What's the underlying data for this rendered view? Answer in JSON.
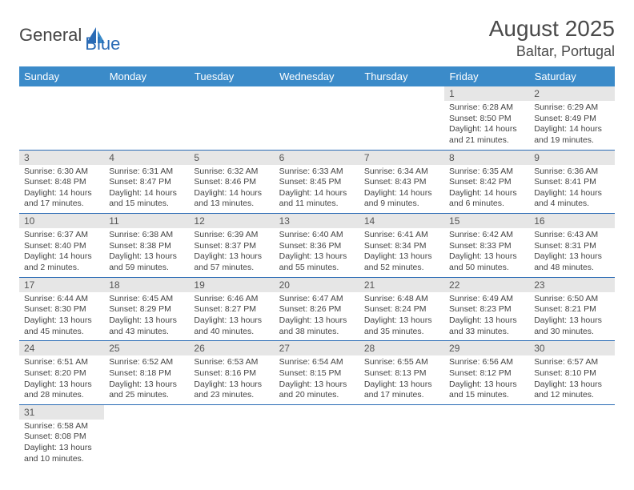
{
  "colors": {
    "header_bg": "#3b8bc9",
    "border": "#2a6bb5",
    "daynum_bg": "#e6e6e6",
    "text": "#444444",
    "title": "#4a4a4a",
    "logo_accent": "#2a6bb5"
  },
  "logo": {
    "part1": "General",
    "part2": "Blue"
  },
  "title": "August 2025",
  "location": "Baltar, Portugal",
  "day_headers": [
    "Sunday",
    "Monday",
    "Tuesday",
    "Wednesday",
    "Thursday",
    "Friday",
    "Saturday"
  ],
  "weeks": [
    [
      null,
      null,
      null,
      null,
      null,
      {
        "n": "1",
        "sr": "Sunrise: 6:28 AM",
        "ss": "Sunset: 8:50 PM",
        "d1": "Daylight: 14 hours",
        "d2": "and 21 minutes."
      },
      {
        "n": "2",
        "sr": "Sunrise: 6:29 AM",
        "ss": "Sunset: 8:49 PM",
        "d1": "Daylight: 14 hours",
        "d2": "and 19 minutes."
      }
    ],
    [
      {
        "n": "3",
        "sr": "Sunrise: 6:30 AM",
        "ss": "Sunset: 8:48 PM",
        "d1": "Daylight: 14 hours",
        "d2": "and 17 minutes."
      },
      {
        "n": "4",
        "sr": "Sunrise: 6:31 AM",
        "ss": "Sunset: 8:47 PM",
        "d1": "Daylight: 14 hours",
        "d2": "and 15 minutes."
      },
      {
        "n": "5",
        "sr": "Sunrise: 6:32 AM",
        "ss": "Sunset: 8:46 PM",
        "d1": "Daylight: 14 hours",
        "d2": "and 13 minutes."
      },
      {
        "n": "6",
        "sr": "Sunrise: 6:33 AM",
        "ss": "Sunset: 8:45 PM",
        "d1": "Daylight: 14 hours",
        "d2": "and 11 minutes."
      },
      {
        "n": "7",
        "sr": "Sunrise: 6:34 AM",
        "ss": "Sunset: 8:43 PM",
        "d1": "Daylight: 14 hours",
        "d2": "and 9 minutes."
      },
      {
        "n": "8",
        "sr": "Sunrise: 6:35 AM",
        "ss": "Sunset: 8:42 PM",
        "d1": "Daylight: 14 hours",
        "d2": "and 6 minutes."
      },
      {
        "n": "9",
        "sr": "Sunrise: 6:36 AM",
        "ss": "Sunset: 8:41 PM",
        "d1": "Daylight: 14 hours",
        "d2": "and 4 minutes."
      }
    ],
    [
      {
        "n": "10",
        "sr": "Sunrise: 6:37 AM",
        "ss": "Sunset: 8:40 PM",
        "d1": "Daylight: 14 hours",
        "d2": "and 2 minutes."
      },
      {
        "n": "11",
        "sr": "Sunrise: 6:38 AM",
        "ss": "Sunset: 8:38 PM",
        "d1": "Daylight: 13 hours",
        "d2": "and 59 minutes."
      },
      {
        "n": "12",
        "sr": "Sunrise: 6:39 AM",
        "ss": "Sunset: 8:37 PM",
        "d1": "Daylight: 13 hours",
        "d2": "and 57 minutes."
      },
      {
        "n": "13",
        "sr": "Sunrise: 6:40 AM",
        "ss": "Sunset: 8:36 PM",
        "d1": "Daylight: 13 hours",
        "d2": "and 55 minutes."
      },
      {
        "n": "14",
        "sr": "Sunrise: 6:41 AM",
        "ss": "Sunset: 8:34 PM",
        "d1": "Daylight: 13 hours",
        "d2": "and 52 minutes."
      },
      {
        "n": "15",
        "sr": "Sunrise: 6:42 AM",
        "ss": "Sunset: 8:33 PM",
        "d1": "Daylight: 13 hours",
        "d2": "and 50 minutes."
      },
      {
        "n": "16",
        "sr": "Sunrise: 6:43 AM",
        "ss": "Sunset: 8:31 PM",
        "d1": "Daylight: 13 hours",
        "d2": "and 48 minutes."
      }
    ],
    [
      {
        "n": "17",
        "sr": "Sunrise: 6:44 AM",
        "ss": "Sunset: 8:30 PM",
        "d1": "Daylight: 13 hours",
        "d2": "and 45 minutes."
      },
      {
        "n": "18",
        "sr": "Sunrise: 6:45 AM",
        "ss": "Sunset: 8:29 PM",
        "d1": "Daylight: 13 hours",
        "d2": "and 43 minutes."
      },
      {
        "n": "19",
        "sr": "Sunrise: 6:46 AM",
        "ss": "Sunset: 8:27 PM",
        "d1": "Daylight: 13 hours",
        "d2": "and 40 minutes."
      },
      {
        "n": "20",
        "sr": "Sunrise: 6:47 AM",
        "ss": "Sunset: 8:26 PM",
        "d1": "Daylight: 13 hours",
        "d2": "and 38 minutes."
      },
      {
        "n": "21",
        "sr": "Sunrise: 6:48 AM",
        "ss": "Sunset: 8:24 PM",
        "d1": "Daylight: 13 hours",
        "d2": "and 35 minutes."
      },
      {
        "n": "22",
        "sr": "Sunrise: 6:49 AM",
        "ss": "Sunset: 8:23 PM",
        "d1": "Daylight: 13 hours",
        "d2": "and 33 minutes."
      },
      {
        "n": "23",
        "sr": "Sunrise: 6:50 AM",
        "ss": "Sunset: 8:21 PM",
        "d1": "Daylight: 13 hours",
        "d2": "and 30 minutes."
      }
    ],
    [
      {
        "n": "24",
        "sr": "Sunrise: 6:51 AM",
        "ss": "Sunset: 8:20 PM",
        "d1": "Daylight: 13 hours",
        "d2": "and 28 minutes."
      },
      {
        "n": "25",
        "sr": "Sunrise: 6:52 AM",
        "ss": "Sunset: 8:18 PM",
        "d1": "Daylight: 13 hours",
        "d2": "and 25 minutes."
      },
      {
        "n": "26",
        "sr": "Sunrise: 6:53 AM",
        "ss": "Sunset: 8:16 PM",
        "d1": "Daylight: 13 hours",
        "d2": "and 23 minutes."
      },
      {
        "n": "27",
        "sr": "Sunrise: 6:54 AM",
        "ss": "Sunset: 8:15 PM",
        "d1": "Daylight: 13 hours",
        "d2": "and 20 minutes."
      },
      {
        "n": "28",
        "sr": "Sunrise: 6:55 AM",
        "ss": "Sunset: 8:13 PM",
        "d1": "Daylight: 13 hours",
        "d2": "and 17 minutes."
      },
      {
        "n": "29",
        "sr": "Sunrise: 6:56 AM",
        "ss": "Sunset: 8:12 PM",
        "d1": "Daylight: 13 hours",
        "d2": "and 15 minutes."
      },
      {
        "n": "30",
        "sr": "Sunrise: 6:57 AM",
        "ss": "Sunset: 8:10 PM",
        "d1": "Daylight: 13 hours",
        "d2": "and 12 minutes."
      }
    ],
    [
      {
        "n": "31",
        "sr": "Sunrise: 6:58 AM",
        "ss": "Sunset: 8:08 PM",
        "d1": "Daylight: 13 hours",
        "d2": "and 10 minutes."
      },
      null,
      null,
      null,
      null,
      null,
      null
    ]
  ]
}
